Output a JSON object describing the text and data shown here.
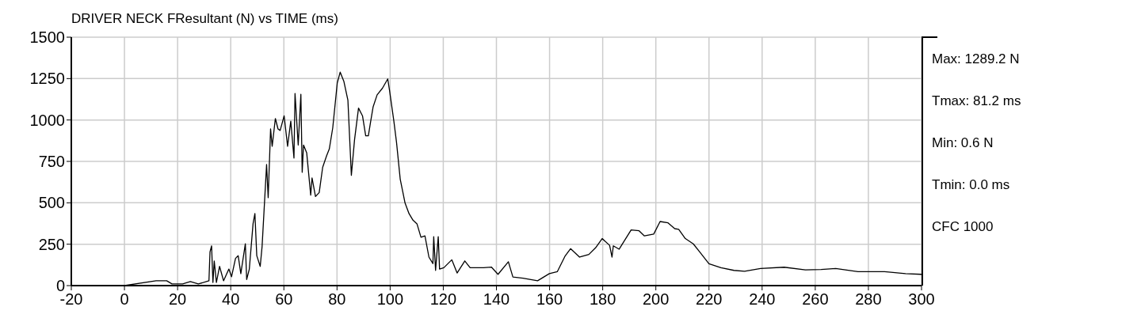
{
  "chart_data": {
    "type": "line",
    "title": "DRIVER NECK FResultant (N) vs TIME (ms)",
    "annotations": [
      "Max: 1289.2 N",
      "Tmax: 81.2 ms",
      "Min: 0.6 N",
      "Tmin: 0.0 ms",
      "CFC 1000"
    ],
    "xlim": [
      -20,
      300
    ],
    "xticks": [
      -20,
      0,
      20,
      40,
      60,
      80,
      100,
      120,
      140,
      160,
      180,
      200,
      220,
      240,
      260,
      280,
      300
    ],
    "ylim": [
      0,
      1500
    ],
    "yticks": [
      0,
      250,
      500,
      750,
      1000,
      1250,
      1500
    ],
    "grid": true,
    "marker": "none",
    "line_style": "solid",
    "series": [
      {
        "color": "#000000",
        "x": [
          -20,
          0,
          11.9,
          15.9,
          17.9,
          21.9,
          24.8,
          27.8,
          31.8,
          32.2,
          32.8,
          33.3,
          33.8,
          34.6,
          35.8,
          37.3,
          39.3,
          40.3,
          41.8,
          42.8,
          43.8,
          45.5,
          46,
          47,
          48.4,
          49.1,
          49.8,
          51.1,
          51.8,
          53.5,
          54.1,
          55,
          55.6,
          56.8,
          57.8,
          58.6,
          60.1,
          61.4,
          62.6,
          63.8,
          64.2,
          65.4,
          66.4,
          66.9,
          67.4,
          68.6,
          70.1,
          70.6,
          71.9,
          73.3,
          74.6,
          76.1,
          77.1,
          78.4,
          80.1,
          81.2,
          82.6,
          84.1,
          85.4,
          86.6,
          88.1,
          89.6,
          90.8,
          91.8,
          92.6,
          93.6,
          95.1,
          97.1,
          99.1,
          99.8,
          101.4,
          102.4,
          103.8,
          105.6,
          107.1,
          108.6,
          110.1,
          111.6,
          113.1,
          114.6,
          116.1,
          116.4,
          117.1,
          118.1,
          118.6,
          120.2,
          123.2,
          125.2,
          128.1,
          130.1,
          135.1,
          138.1,
          140.6,
          144.5,
          146.2,
          150,
          155.5,
          159.9,
          162.9,
          165.9,
          167.9,
          171.3,
          174.8,
          177.3,
          179.8,
          182.6,
          183.5,
          184,
          186.2,
          190.7,
          193.7,
          195.7,
          199.2,
          201.6,
          204.6,
          207.1,
          208.6,
          211.1,
          214.1,
          216.5,
          220,
          224.5,
          229.4,
          233.4,
          239.4,
          248.3,
          256.3,
          262.2,
          267.7,
          276.1,
          286.1,
          294,
          300
        ],
        "values": [
          0,
          0,
          29,
          29,
          10,
          10,
          24,
          10,
          29,
          204,
          240,
          19,
          148,
          19,
          116,
          29,
          100,
          53,
          164,
          181,
          72,
          253,
          37,
          100,
          373,
          435,
          181,
          116,
          236,
          731,
          531,
          946,
          841,
          1009,
          946,
          937,
          1025,
          841,
          993,
          770,
          1160,
          849,
          1155,
          684,
          849,
          801,
          546,
          650,
          538,
          562,
          714,
          785,
          825,
          953,
          1224,
          1289,
          1232,
          1120,
          666,
          881,
          1072,
          1025,
          905,
          905,
          985,
          1080,
          1152,
          1192,
          1248,
          1176,
          993,
          865,
          642,
          499,
          435,
          395,
          373,
          292,
          300,
          172,
          133,
          296,
          92,
          296,
          100,
          108,
          156,
          76,
          149,
          108,
          108,
          112,
          68,
          144,
          52,
          45,
          29,
          72,
          84,
          180,
          223,
          172,
          188,
          228,
          284,
          243,
          172,
          240,
          220,
          336,
          331,
          300,
          311,
          387,
          379,
          344,
          340,
          284,
          252,
          204,
          132,
          108,
          92,
          87,
          103,
          111,
          95,
          97,
          103,
          84,
          84,
          72,
          68
        ]
      }
    ]
  }
}
